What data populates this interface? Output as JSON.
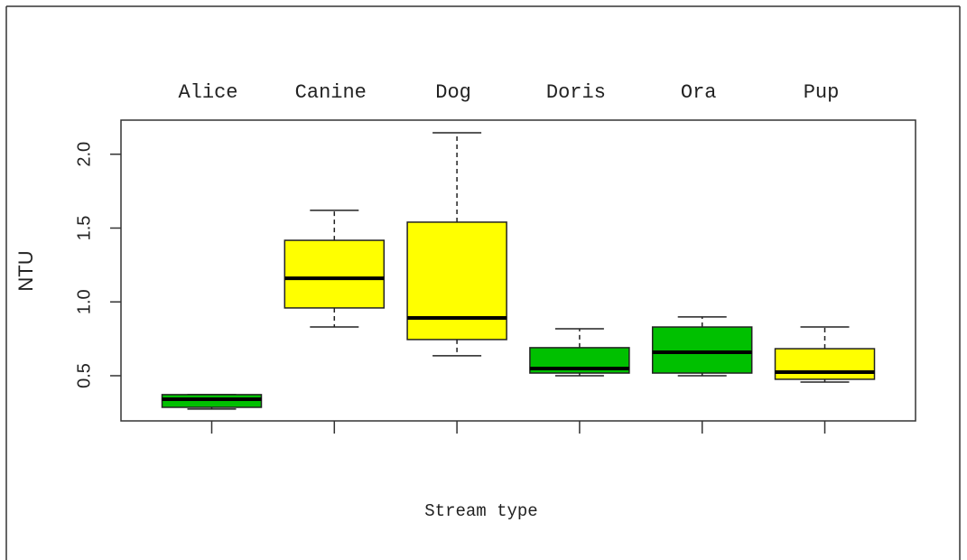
{
  "chart_data": {
    "type": "boxplot",
    "xlabel": "Stream type",
    "ylabel": "NTU",
    "categories": [
      "Alice",
      "Canine",
      "Dog",
      "Doris",
      "Ora",
      "Pup"
    ],
    "colors": [
      "#00c000",
      "#ffff00",
      "#ffff00",
      "#00c000",
      "#00c000",
      "#ffff00"
    ],
    "boxes": [
      {
        "min": 0.274,
        "q1": 0.286,
        "median": 0.341,
        "q3": 0.372,
        "max": 0.372
      },
      {
        "min": 0.83,
        "q1": 0.959,
        "median": 1.16,
        "q3": 1.417,
        "max": 1.62
      },
      {
        "min": 0.635,
        "q1": 0.745,
        "median": 0.891,
        "q3": 1.54,
        "max": 2.145
      },
      {
        "min": 0.5,
        "q1": 0.518,
        "median": 0.549,
        "q3": 0.69,
        "max": 0.818
      },
      {
        "min": 0.5,
        "q1": 0.518,
        "median": 0.659,
        "q3": 0.83,
        "max": 0.898
      },
      {
        "min": 0.457,
        "q1": 0.476,
        "median": 0.524,
        "q3": 0.683,
        "max": 0.83
      }
    ],
    "ylim": [
      0.194,
      2.231
    ],
    "yticks": [
      0.5,
      {
        "value": 1,
        "label": "1.0"
      },
      1.5,
      {
        "value": 2,
        "label": "2.0"
      }
    ]
  }
}
